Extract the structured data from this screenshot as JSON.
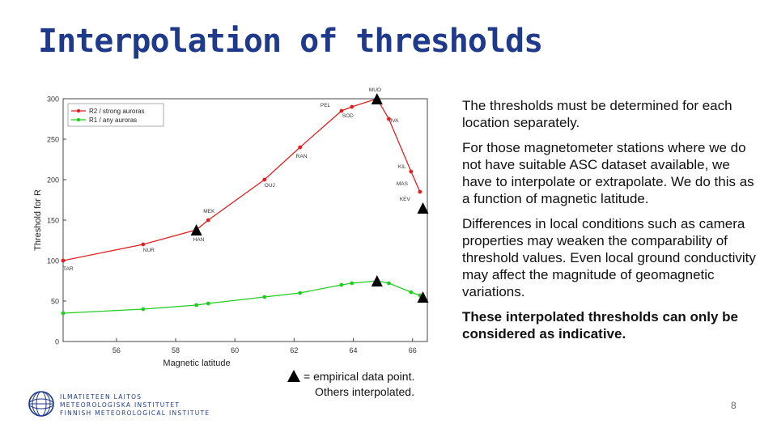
{
  "slide": {
    "title": "Interpolation of thresholds",
    "bullets": [
      "The thresholds must be determined for each location separately.",
      "For those magnetometer stations where we do not have suitable ASC dataset available, we have to interpolate or extrapolate. We do this as a function of magnetic latitude.",
      "Differences in local conditions such as camera properties may weaken the comparability of threshold values. Even local ground conductivity may affect the magnitude of geomagnetic variations."
    ],
    "bold_bullet": "These interpolated thresholds can only be considered as indicative.",
    "legend_note_line1": "= empirical data point.",
    "legend_note_line2": "Others interpolated.",
    "logo_lines": [
      "ILMATIETEEN LAITOS",
      "METEOROLOGISKA INSTITUTET",
      "FINNISH METEOROLOGICAL INSTITUTE"
    ],
    "page_number": "8"
  },
  "chart_data": {
    "type": "line",
    "xlabel": "Magnetic latitude",
    "ylabel": "Threshold for R",
    "xlim": [
      54.2,
      66.5
    ],
    "ylim": [
      0,
      300
    ],
    "xticks": [
      56,
      58,
      60,
      62,
      64,
      66
    ],
    "yticks": [
      0,
      50,
      100,
      150,
      200,
      250,
      300
    ],
    "grid": false,
    "legend_position": "top-left",
    "series": [
      {
        "name": "R2 / strong auroras",
        "color": "#e02020",
        "x": [
          54.2,
          56.9,
          58.7,
          59.1,
          61.0,
          62.2,
          63.6,
          63.95,
          64.8,
          65.2,
          65.95,
          66.25
        ],
        "y": [
          100,
          120,
          138,
          150,
          200,
          240,
          285,
          290,
          300,
          275,
          210,
          185
        ]
      },
      {
        "name": "R1 / any auroras",
        "color": "#22cc22",
        "x": [
          54.2,
          56.9,
          58.7,
          59.1,
          61.0,
          62.2,
          63.6,
          63.95,
          64.8,
          65.2,
          65.95,
          66.25
        ],
        "y": [
          35,
          40,
          45,
          47,
          55,
          60,
          70,
          72,
          75,
          72,
          61,
          57
        ]
      }
    ],
    "station_labels": [
      {
        "text": "TAR",
        "x": 54.2,
        "y": 100
      },
      {
        "text": "NUR",
        "x": 56.9,
        "y": 120
      },
      {
        "text": "HAN",
        "x": 58.7,
        "y": 138
      },
      {
        "text": "MEK",
        "x": 59.1,
        "y": 150
      },
      {
        "text": "OUJ",
        "x": 61.0,
        "y": 200
      },
      {
        "text": "RAN",
        "x": 62.2,
        "y": 240
      },
      {
        "text": "PEL",
        "x": 63.6,
        "y": 285
      },
      {
        "text": "SOD",
        "x": 63.95,
        "y": 290
      },
      {
        "text": "MUO",
        "x": 64.8,
        "y": 300
      },
      {
        "text": "IVA",
        "x": 65.2,
        "y": 275
      },
      {
        "text": "KIL",
        "x": 65.95,
        "y": 210
      },
      {
        "text": "MAS",
        "x": 65.95,
        "y": 210
      },
      {
        "text": "KEV",
        "x": 66.25,
        "y": 185
      }
    ],
    "empirical_points": [
      {
        "x": 58.7,
        "y": 138
      },
      {
        "x": 64.8,
        "y": 300
      },
      {
        "x": 66.35,
        "y": 165
      },
      {
        "x": 64.8,
        "y": 75
      },
      {
        "x": 66.35,
        "y": 55
      }
    ]
  }
}
